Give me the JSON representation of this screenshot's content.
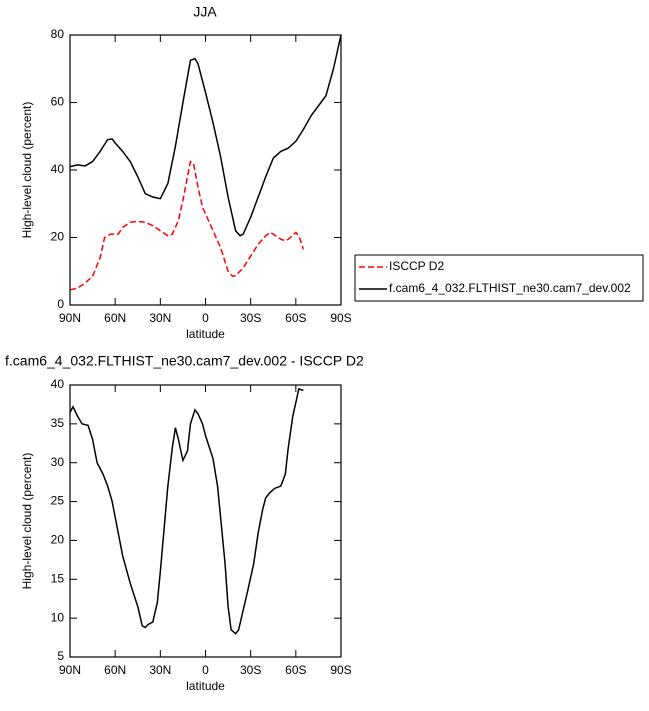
{
  "chart_data": [
    {
      "type": "line",
      "title": "JJA",
      "xlabel": "latitude",
      "ylabel": "High-level cloud (percent)",
      "xlim": [
        90,
        -90
      ],
      "ylim": [
        0,
        80
      ],
      "xticks": [
        {
          "value": 90,
          "label": "90N"
        },
        {
          "value": 60,
          "label": "60N"
        },
        {
          "value": 30,
          "label": "30N"
        },
        0,
        {
          "value": -30,
          "label": "30S"
        },
        {
          "value": -60,
          "label": "60S"
        },
        {
          "value": -90,
          "label": "90S"
        }
      ],
      "yticks": [
        0,
        20,
        40,
        60,
        80
      ],
      "legend": "right",
      "series": [
        {
          "name": "ISCCP D2",
          "color": "#ff0000",
          "dash": true,
          "x": [
            90,
            85,
            80,
            75,
            70,
            67,
            63,
            58,
            55,
            50,
            45,
            40,
            35,
            30,
            25,
            22,
            18,
            15,
            12,
            10,
            8,
            5,
            2,
            0,
            -5,
            -10,
            -15,
            -18,
            -20,
            -25,
            -30,
            -35,
            -40,
            -43,
            -45,
            -50,
            -53,
            -55,
            -60,
            -62,
            -65
          ],
          "values": [
            4.5,
            5,
            6.5,
            8.5,
            14,
            20,
            21,
            21,
            23,
            24.5,
            24.8,
            24.5,
            23.5,
            22,
            20.5,
            21,
            25,
            31,
            38,
            42.5,
            42,
            35,
            29,
            27,
            22,
            17,
            10,
            8.5,
            8.7,
            11,
            14.5,
            18,
            20.5,
            21.5,
            21,
            19.5,
            19,
            19.5,
            21.5,
            20.5,
            16.5
          ]
        },
        {
          "name": "f.cam6_4_032.FLTHIST_ne30.cam7_dev.002",
          "color": "#000000",
          "dash": false,
          "x": [
            90,
            85,
            80,
            75,
            70,
            65,
            62,
            60,
            55,
            50,
            45,
            40,
            35,
            30,
            25,
            20,
            15,
            10,
            7,
            5,
            0,
            -5,
            -10,
            -15,
            -20,
            -23,
            -25,
            -30,
            -35,
            -40,
            -45,
            -50,
            -55,
            -60,
            -65,
            -70,
            -75,
            -80,
            -85,
            -90
          ],
          "values": [
            41,
            41.5,
            41.2,
            42.5,
            45.5,
            49,
            49.2,
            48,
            45.5,
            42.5,
            38,
            33,
            32,
            31.5,
            36,
            47,
            60,
            72.5,
            73,
            71.5,
            63,
            54,
            44,
            32,
            22,
            20.5,
            21,
            26,
            32,
            38,
            43.5,
            45.5,
            46.5,
            48.5,
            52,
            56,
            59,
            62,
            70,
            80
          ]
        }
      ]
    },
    {
      "type": "line",
      "title": "f.cam6_4_032.FLTHIST_ne30.cam7_dev.002 - ISCCP D2",
      "xlabel": "latitude",
      "ylabel": "High-level cloud (percent)",
      "xlim": [
        90,
        -90
      ],
      "ylim": [
        5,
        40
      ],
      "xticks": [
        {
          "value": 90,
          "label": "90N"
        },
        {
          "value": 60,
          "label": "60N"
        },
        {
          "value": 30,
          "label": "30N"
        },
        0,
        {
          "value": -30,
          "label": "30S"
        },
        {
          "value": -60,
          "label": "60S"
        },
        {
          "value": -90,
          "label": "90S"
        }
      ],
      "yticks": [
        5,
        10,
        15,
        20,
        25,
        30,
        35,
        40
      ],
      "series": [
        {
          "color": "#000000",
          "dash": false,
          "x": [
            90,
            88,
            85,
            82,
            78,
            75,
            72,
            68,
            65,
            62,
            58,
            55,
            50,
            45,
            42,
            40,
            38,
            35,
            32,
            30,
            25,
            22,
            20,
            18,
            15,
            12,
            10,
            7,
            5,
            2,
            0,
            -5,
            -8,
            -10,
            -13,
            -15,
            -17,
            -20,
            -22,
            -25,
            -28,
            -32,
            -35,
            -38,
            -40,
            -43,
            -46,
            -50,
            -53,
            -55,
            -58,
            -62,
            -65
          ],
          "values": [
            36.5,
            37.2,
            36,
            35,
            34.8,
            33,
            30,
            28.5,
            27,
            25,
            21,
            18,
            14.5,
            11.5,
            9,
            8.8,
            9.2,
            9.5,
            12,
            16,
            27,
            32,
            34.5,
            33,
            30.3,
            31.5,
            35,
            36.8,
            36.3,
            35,
            33.5,
            30.5,
            27,
            23,
            17,
            11.5,
            8.5,
            8,
            8.5,
            11,
            13.5,
            17,
            21,
            24,
            25.5,
            26.2,
            26.7,
            27,
            28.5,
            32,
            36,
            39.5,
            39.3
          ]
        }
      ]
    }
  ]
}
